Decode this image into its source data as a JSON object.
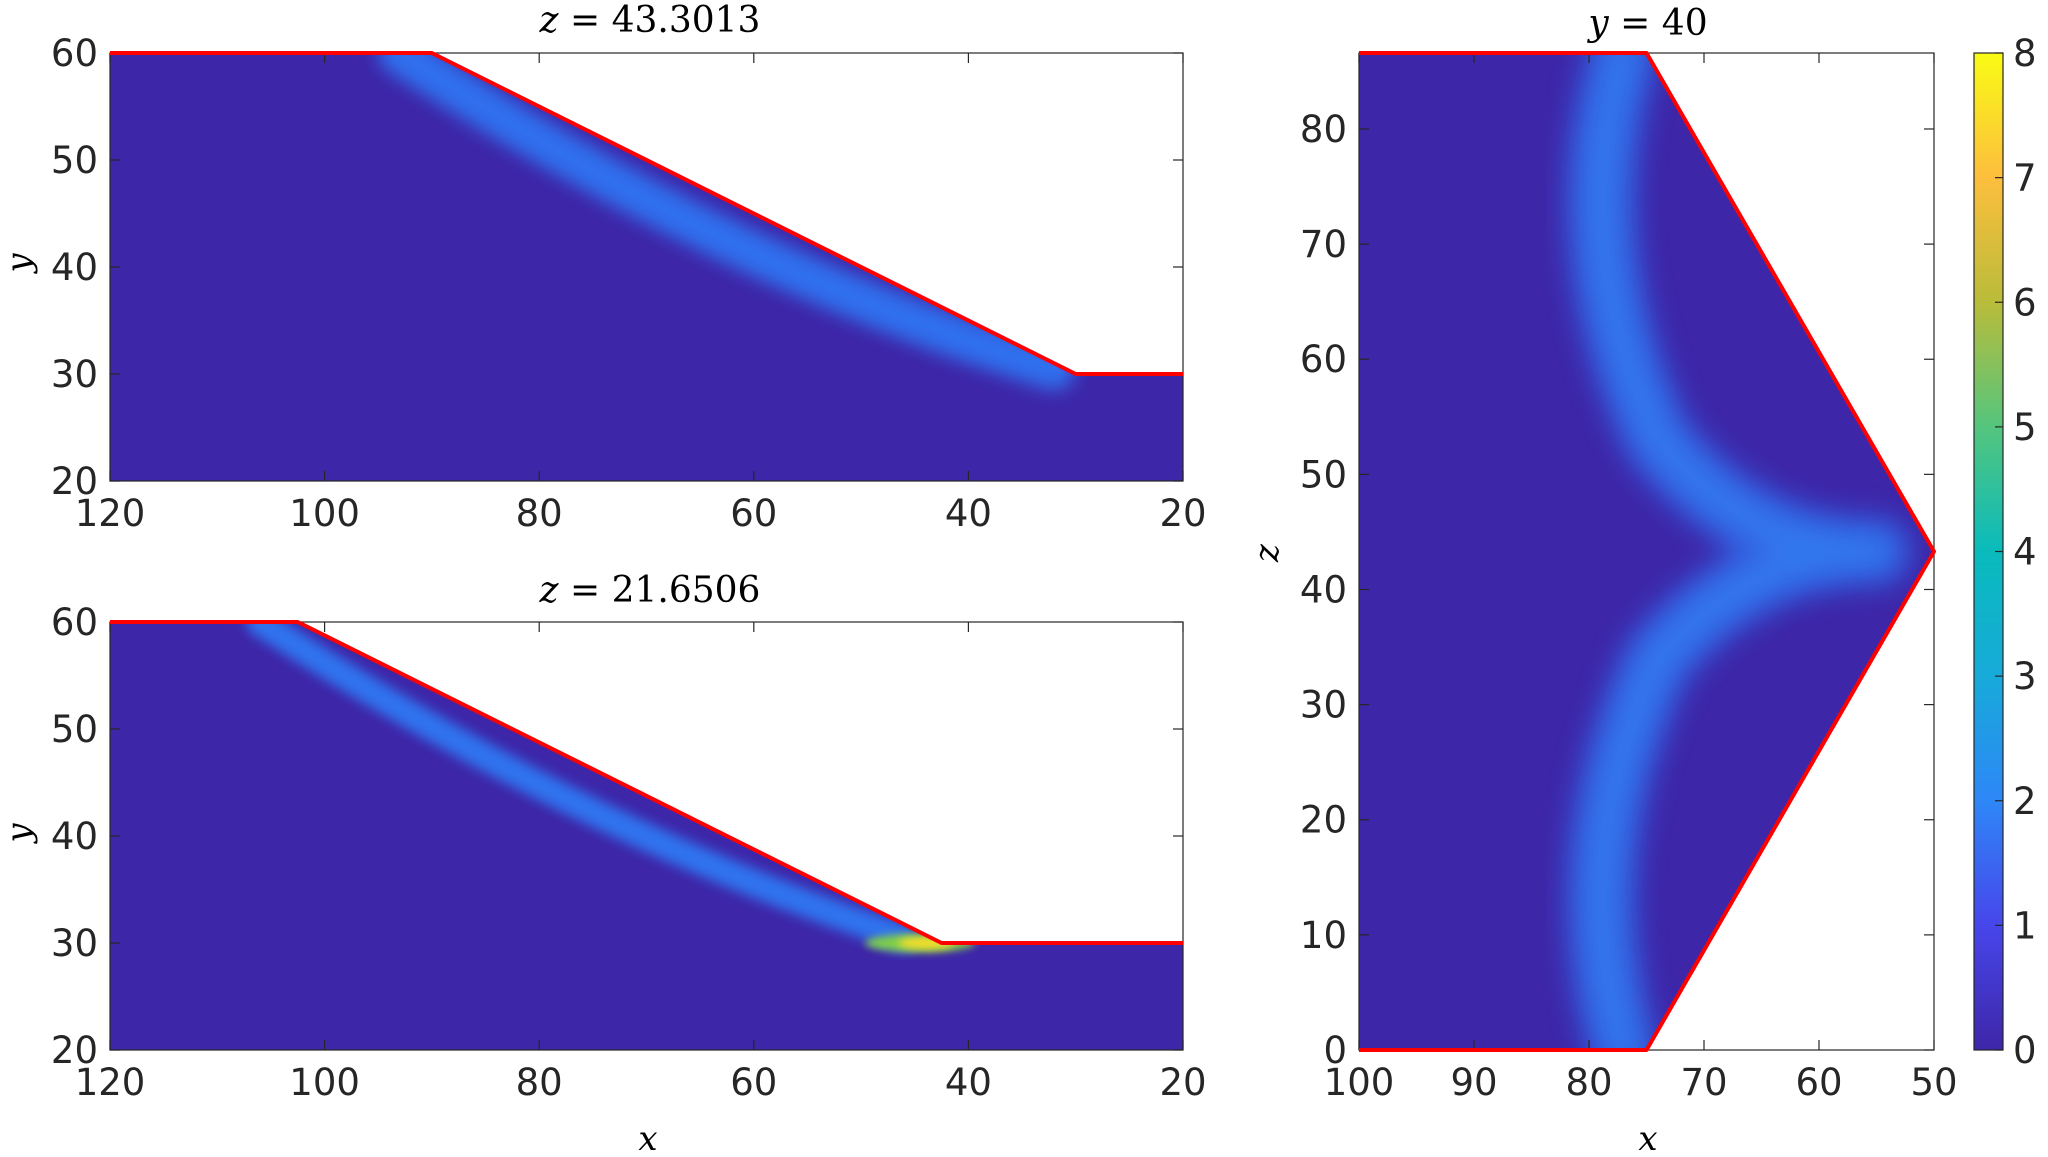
{
  "chart_data": [
    {
      "type": "heatmap",
      "title": "z = 43.3013",
      "title_var": "z",
      "title_val": "43.3013",
      "xlabel": "",
      "ylabel": "y",
      "xlim": [
        20,
        120
      ],
      "ylim": [
        20,
        60
      ],
      "x_reversed": true,
      "xticks": [
        120,
        100,
        80,
        60,
        40,
        20
      ],
      "yticks": [
        20,
        30,
        40,
        50,
        60
      ],
      "boundary": [
        [
          120,
          60
        ],
        [
          90,
          60
        ],
        [
          30,
          30
        ],
        [
          20,
          30
        ]
      ],
      "band": {
        "start": [
          93,
          60
        ],
        "end": [
          32,
          30.5
        ],
        "bulge_y": -5.5,
        "width_y": 4.0,
        "peak_value": 2.0,
        "hotspot_value": 0
      }
    },
    {
      "type": "heatmap",
      "title": "z = 21.6506",
      "title_var": "z",
      "title_val": "21.6506",
      "xlabel": "x",
      "ylabel": "y",
      "xlim": [
        20,
        120
      ],
      "ylim": [
        20,
        60
      ],
      "x_reversed": true,
      "xticks": [
        120,
        100,
        80,
        60,
        40,
        20
      ],
      "yticks": [
        20,
        30,
        40,
        50,
        60
      ],
      "boundary": [
        [
          120,
          60
        ],
        [
          102.5,
          60
        ],
        [
          42.5,
          30
        ],
        [
          20,
          30
        ]
      ],
      "band": {
        "start": [
          106,
          60
        ],
        "end": [
          46,
          30.5
        ],
        "bulge_y": -5.0,
        "width_y": 2.6,
        "peak_value": 2.3,
        "hotspot_value": 7.5
      }
    },
    {
      "type": "heatmap",
      "title": "y = 40",
      "title_var": "y",
      "title_val": "40",
      "xlabel": "x",
      "ylabel": "z",
      "xlim": [
        50,
        100
      ],
      "ylim": [
        0,
        86.6
      ],
      "x_reversed": true,
      "xticks": [
        100,
        90,
        80,
        70,
        60,
        50
      ],
      "yticks": [
        0,
        10,
        20,
        30,
        40,
        50,
        60,
        70,
        80
      ],
      "boundary": [
        [
          100,
          86.6
        ],
        [
          75,
          86.6
        ],
        [
          50,
          43.3
        ],
        [
          75,
          0
        ],
        [
          100,
          0
        ]
      ],
      "band": {
        "peak_value": 2.0
      }
    }
  ],
  "colorbar": {
    "min": 0,
    "max": 8,
    "ticks": [
      0,
      1,
      2,
      3,
      4,
      5,
      6,
      7,
      8
    ],
    "colormap": "parula"
  },
  "colors": {
    "boundary": "#ff0000",
    "background_value": "#3e26a8"
  }
}
